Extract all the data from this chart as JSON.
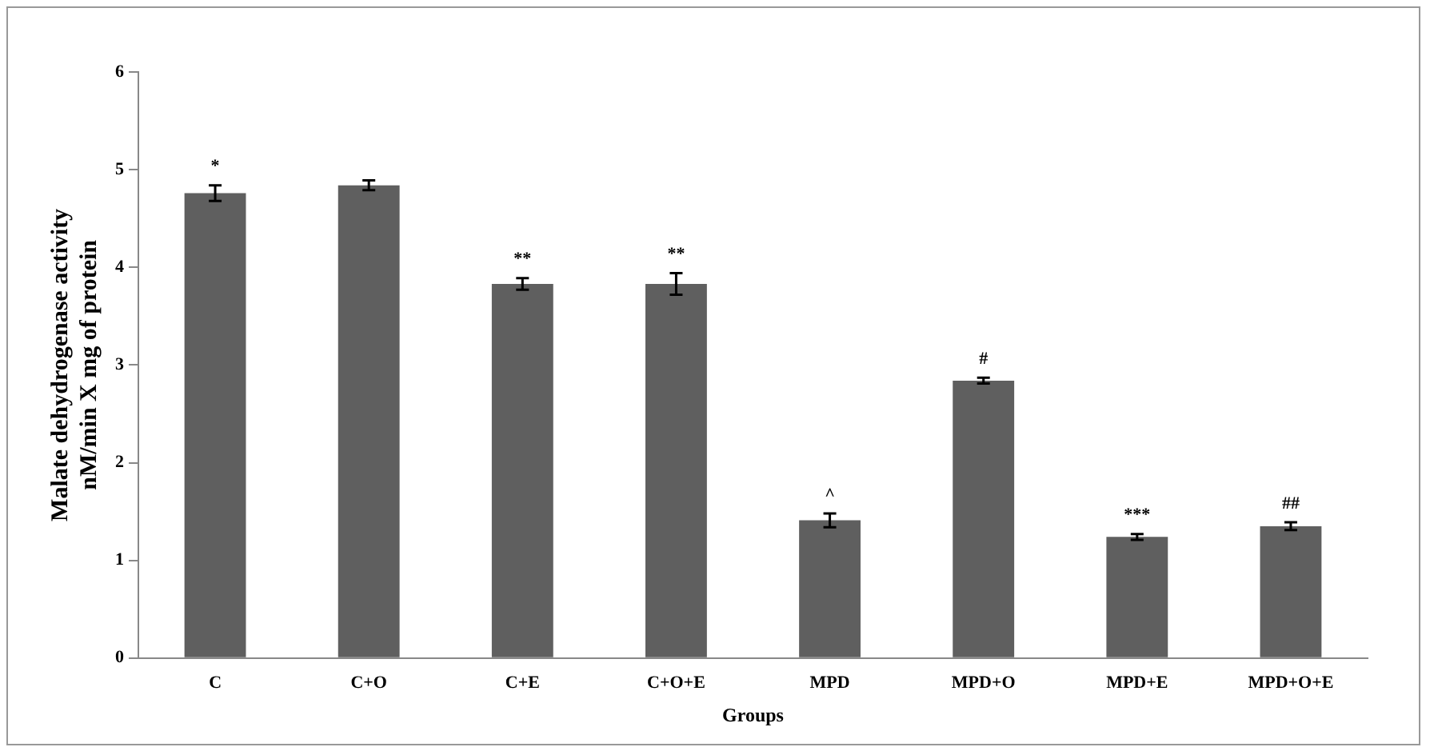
{
  "chart_data": {
    "type": "bar",
    "xlabel": "Groups",
    "ylabel": "Malate dehydrogenase activity\nnM/min X mg of protein",
    "categories": [
      "C",
      "C+O",
      "C+E",
      "C+O+E",
      "MPD",
      "MPD+O",
      "MPD+E",
      "MPD+O+E"
    ],
    "values": [
      4.76,
      4.84,
      3.83,
      3.83,
      1.41,
      2.84,
      1.24,
      1.35
    ],
    "errors": [
      0.08,
      0.05,
      0.06,
      0.11,
      0.07,
      0.03,
      0.03,
      0.04
    ],
    "color": "#5f5f5f",
    "ylim": [
      0,
      6
    ],
    "yticks": [
      0,
      1,
      2,
      3,
      4,
      5,
      6
    ],
    "grid": false,
    "legend": false,
    "annotations": [
      {
        "text": "*",
        "x": "C",
        "y": 4.84
      },
      {
        "text": "**",
        "x": "C+E",
        "y": 3.89
      },
      {
        "text": "**",
        "x": "C+O+E",
        "y": 3.94
      },
      {
        "text": "^",
        "x": "MPD",
        "y": 1.48
      },
      {
        "text": "#",
        "x": "MPD+O",
        "y": 2.87
      },
      {
        "text": "***",
        "x": "MPD+E",
        "y": 1.27
      },
      {
        "text": "##",
        "x": "MPD+O+E",
        "y": 1.39
      }
    ]
  }
}
